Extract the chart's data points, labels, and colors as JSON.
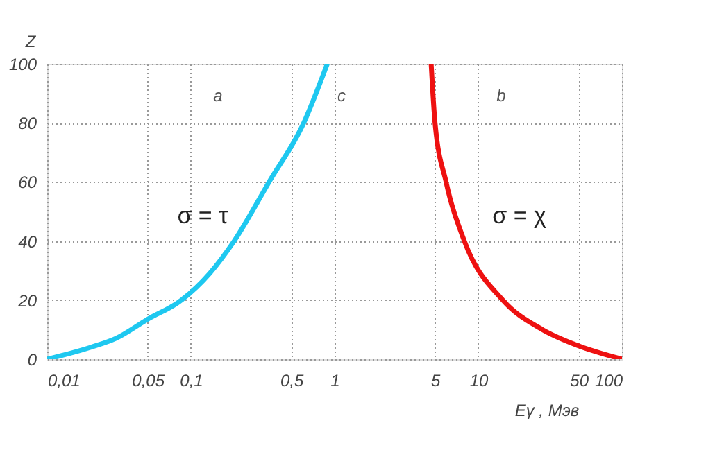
{
  "chart_data": {
    "type": "line",
    "xlabel": "Eγ , Мэв",
    "ylabel": "Z",
    "log": "x",
    "xlim": [
      0.01,
      100
    ],
    "ylim": [
      0,
      100
    ],
    "xticks": [
      {
        "value": 0.01,
        "label": "0,01"
      },
      {
        "value": 0.05,
        "label": "0,05"
      },
      {
        "value": 0.1,
        "label": "0,1"
      },
      {
        "value": 0.5,
        "label": "0,5"
      },
      1,
      5,
      10,
      50,
      100
    ],
    "yticks": [
      0,
      20,
      40,
      60,
      80,
      100
    ],
    "grid": true,
    "line_style": "solid",
    "marker": "none",
    "series": [
      {
        "color": "#1ec8f0",
        "x": [
          0.01,
          0.02,
          0.03,
          0.05,
          0.086,
          0.135,
          0.2,
          0.35,
          0.61,
          0.89
        ],
        "values": [
          0,
          4,
          7,
          13.5,
          20,
          29,
          40,
          60,
          80,
          100
        ]
      },
      {
        "color": "#ee1111",
        "x": [
          4.7,
          5.0,
          5.97,
          8.0,
          14.8,
          28,
          47,
          100
        ],
        "values": [
          100,
          80,
          60,
          40,
          20,
          10,
          5,
          0
        ]
      }
    ],
    "annotations": [
      "a",
      "c",
      "b",
      "σ = τ",
      "σ = χ"
    ]
  }
}
